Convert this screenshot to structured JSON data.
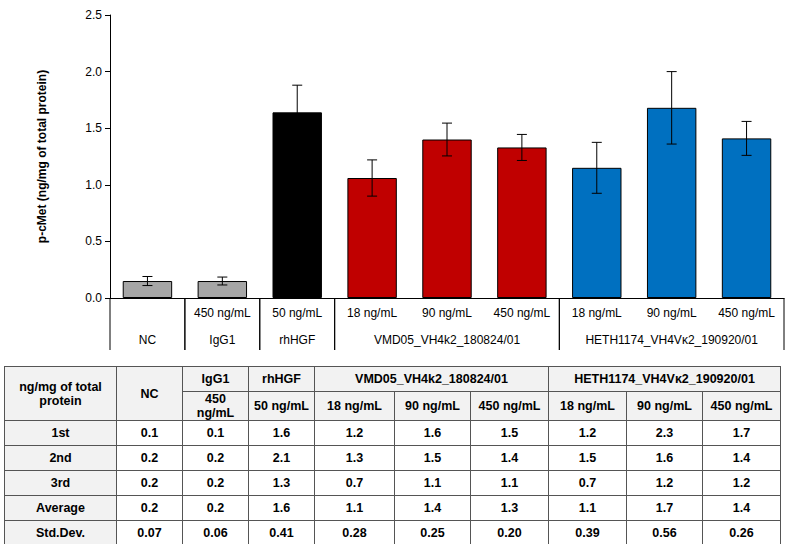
{
  "chart_data": {
    "type": "bar",
    "y_label": "p-cMet (ng/mg of total protein)",
    "categories": [
      null,
      "450 ng/mL",
      "50 ng/mL",
      "18 ng/mL",
      "90 ng/mL",
      "450 ng/mL",
      "18 ng/mL",
      "90 ng/mL",
      "450 ng/mL"
    ],
    "groups": [
      {
        "label": "NC",
        "size": 1
      },
      {
        "label": "IgG1",
        "size": 1
      },
      {
        "label": "rhHGF",
        "size": 1
      },
      {
        "label": "VMD05_VH4k2_180824/01",
        "size": 3
      },
      {
        "label": "HETH1174_VH4Vκ2_190920/01",
        "size": 3
      }
    ],
    "values": [
      0.15,
      0.15,
      1.64,
      1.06,
      1.4,
      1.33,
      1.15,
      1.68,
      1.41
    ],
    "errors": [
      0.04,
      0.035,
      0.24,
      0.16,
      0.145,
      0.115,
      0.225,
      0.32,
      0.15
    ],
    "colors": [
      "#a6a6a6",
      "#a6a6a6",
      "#000000",
      "#c00000",
      "#c00000",
      "#c00000",
      "#0070c0",
      "#0070c0",
      "#0070c0"
    ],
    "ylim": [
      0,
      2.5
    ],
    "yticks": [
      {
        "value": 0,
        "label": "0.0"
      },
      {
        "value": 0.5,
        "label": "0.5"
      },
      {
        "value": 1,
        "label": "1.0"
      },
      {
        "value": 1.5,
        "label": "1.5"
      },
      {
        "value": 2,
        "label": "2.0"
      },
      {
        "value": 2.5,
        "label": "2.5"
      }
    ],
    "grid": false
  },
  "table": {
    "corner": "ng/mg of total protein",
    "columns": [
      {
        "group": "NC",
        "dose": null
      },
      {
        "group": "IgG1",
        "dose": "450 ng/mL"
      },
      {
        "group": "rhHGF",
        "dose": "50 ng/mL"
      },
      {
        "group": "VMD05_VH4k2_180824/01",
        "dose": "18 ng/mL"
      },
      {
        "group": "VMD05_VH4k2_180824/01",
        "dose": "90 ng/mL"
      },
      {
        "group": "VMD05_VH4k2_180824/01",
        "dose": "450 ng/mL"
      },
      {
        "group": "HETH1174_VH4Vκ2_190920/01",
        "dose": "18 ng/mL"
      },
      {
        "group": "HETH1174_VH4Vκ2_190920/01",
        "dose": "90 ng/mL"
      },
      {
        "group": "HETH1174_VH4Vκ2_190920/01",
        "dose": "450 ng/mL"
      }
    ],
    "rows": [
      {
        "label": "1st",
        "cells": [
          "0.1",
          "0.1",
          "1.6",
          "1.2",
          "1.6",
          "1.5",
          "1.2",
          "2.3",
          "1.7"
        ]
      },
      {
        "label": "2nd",
        "cells": [
          "0.2",
          "0.2",
          "2.1",
          "1.3",
          "1.5",
          "1.4",
          "1.5",
          "1.6",
          "1.4"
        ]
      },
      {
        "label": "3rd",
        "cells": [
          "0.2",
          "0.2",
          "1.3",
          "0.7",
          "1.1",
          "1.1",
          "0.7",
          "1.2",
          "1.2"
        ]
      },
      {
        "label": "Average",
        "cells": [
          "0.2",
          "0.2",
          "1.6",
          "1.1",
          "1.4",
          "1.3",
          "1.1",
          "1.7",
          "1.4"
        ]
      },
      {
        "label": "Std.Dev.",
        "cells": [
          "0.07",
          "0.06",
          "0.41",
          "0.28",
          "0.25",
          "0.20",
          "0.39",
          "0.56",
          "0.26"
        ]
      }
    ]
  }
}
